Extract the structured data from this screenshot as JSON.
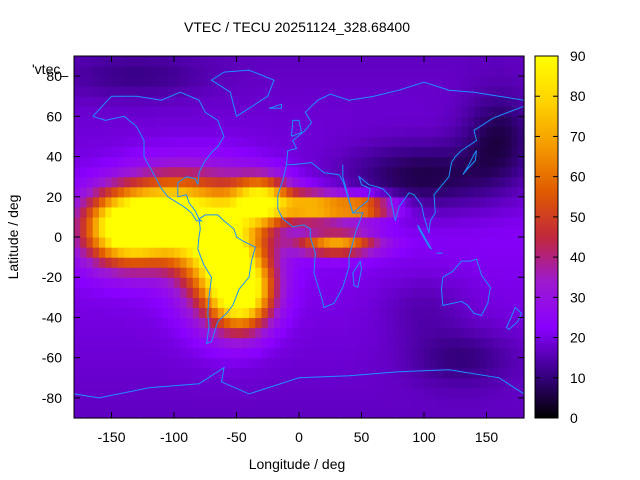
{
  "chart_data": {
    "type": "heatmap",
    "title": "VTEC / TECU 20251124_328.68400",
    "xlabel": "Longitude / deg",
    "ylabel": "Latitude / deg",
    "xlim": [
      -180,
      180
    ],
    "ylim": [
      -90,
      90
    ],
    "x_ticks": [
      -150,
      -100,
      -50,
      0,
      50,
      100,
      150
    ],
    "y_ticks": [
      -80,
      -60,
      -40,
      -20,
      0,
      20,
      40,
      60,
      80
    ],
    "legend_entry": "'vtec_",
    "colorbar": {
      "range": [
        0,
        90
      ],
      "ticks": [
        0,
        10,
        20,
        30,
        40,
        50,
        60,
        70,
        80,
        90
      ],
      "colormap": "gnuplot",
      "colors": [
        "#000000",
        "#3a0088",
        "#8a00ff",
        "#9c1ad0",
        "#c2283c",
        "#e05a00",
        "#f59a00",
        "#ffd400",
        "#ffff00"
      ]
    },
    "background_level": 22,
    "grid": false,
    "anomalies": [
      {
        "lon": -140,
        "lat": 5,
        "peak": 78,
        "sigma_lon": 22,
        "sigma_lat": 12
      },
      {
        "lon": -100,
        "lat": 10,
        "peak": 68,
        "sigma_lon": 25,
        "sigma_lat": 14
      },
      {
        "lon": -60,
        "lat": -8,
        "peak": 70,
        "sigma_lon": 22,
        "sigma_lat": 20
      },
      {
        "lon": -45,
        "lat": -28,
        "peak": 62,
        "sigma_lon": 16,
        "sigma_lat": 12
      },
      {
        "lon": -30,
        "lat": 18,
        "peak": 64,
        "sigma_lon": 16,
        "sigma_lat": 8
      },
      {
        "lon": 10,
        "lat": 15,
        "peak": 52,
        "sigma_lon": 18,
        "sigma_lat": 5
      },
      {
        "lon": 50,
        "lat": 15,
        "peak": 48,
        "sigma_lon": 18,
        "sigma_lat": 4
      },
      {
        "lon": 30,
        "lat": -3,
        "peak": 48,
        "sigma_lon": 22,
        "sigma_lat": 4
      },
      {
        "lon": 100,
        "lat": 30,
        "peak": -14,
        "sigma_lon": 45,
        "sigma_lat": 12
      },
      {
        "lon": 160,
        "lat": 50,
        "peak": -12,
        "sigma_lon": 20,
        "sigma_lat": 15
      },
      {
        "lon": 130,
        "lat": -60,
        "peak": -8,
        "sigma_lon": 30,
        "sigma_lat": 10
      },
      {
        "lon": -130,
        "lat": 80,
        "peak": -6,
        "sigma_lon": 40,
        "sigma_lat": 8
      },
      {
        "lon": 100,
        "lat": -35,
        "peak": -5,
        "sigma_lon": 25,
        "sigma_lat": 12
      }
    ]
  }
}
